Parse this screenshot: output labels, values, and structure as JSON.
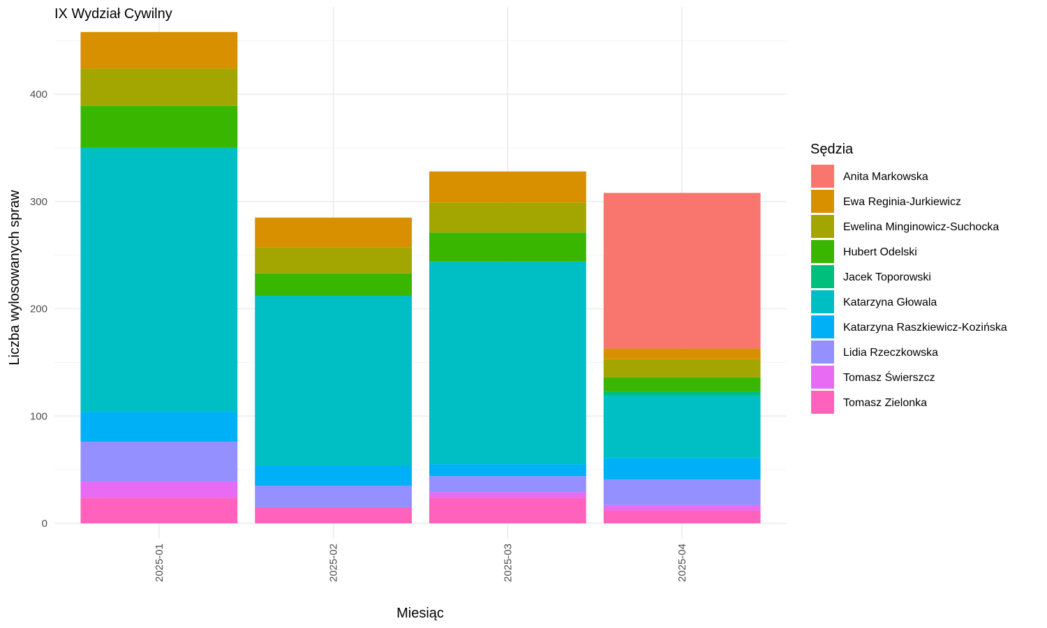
{
  "chart_data": {
    "type": "bar",
    "stacked": true,
    "title": "IX Wydział Cywilny",
    "xlabel": "Miesiąc",
    "ylabel": "Liczba wylosowanych spraw",
    "ylim": [
      0,
      480
    ],
    "yticks": [
      0,
      100,
      200,
      300,
      400
    ],
    "grid": true,
    "legend_position": "right",
    "legend_title": "Sędzia",
    "categories": [
      "2025-01",
      "2025-02",
      "2025-03",
      "2025-04"
    ],
    "series": [
      {
        "name": "Anita Markowska",
        "color": "#F8766D",
        "values": [
          0,
          0,
          0,
          145
        ]
      },
      {
        "name": "Ewa Reginia-Jurkiewicz",
        "color": "#D89000",
        "values": [
          34,
          28,
          29,
          10
        ]
      },
      {
        "name": "Ewelina Minginowicz-Suchocka",
        "color": "#A3A500",
        "values": [
          35,
          24,
          28,
          17
        ]
      },
      {
        "name": "Hubert Odelski",
        "color": "#39B600",
        "values": [
          39,
          21,
          27,
          13
        ]
      },
      {
        "name": "Jacek Toporowski",
        "color": "#00BF7D",
        "values": [
          0,
          0,
          0,
          4
        ]
      },
      {
        "name": "Katarzyna Głowala",
        "color": "#00BFC4",
        "values": [
          246,
          158,
          189,
          58
        ]
      },
      {
        "name": "Katarzyna Raszkiewicz-Kozińska",
        "color": "#00B0F6",
        "values": [
          28,
          19,
          11,
          20
        ]
      },
      {
        "name": "Lidia Rzeczkowska",
        "color": "#9590FF",
        "values": [
          37,
          20,
          15,
          24
        ]
      },
      {
        "name": "Tomasz Świerszcz",
        "color": "#E76BF3",
        "values": [
          15,
          0,
          5,
          5
        ]
      },
      {
        "name": "Tomasz Zielonka",
        "color": "#FF62BC",
        "values": [
          24,
          15,
          24,
          12
        ]
      }
    ]
  }
}
